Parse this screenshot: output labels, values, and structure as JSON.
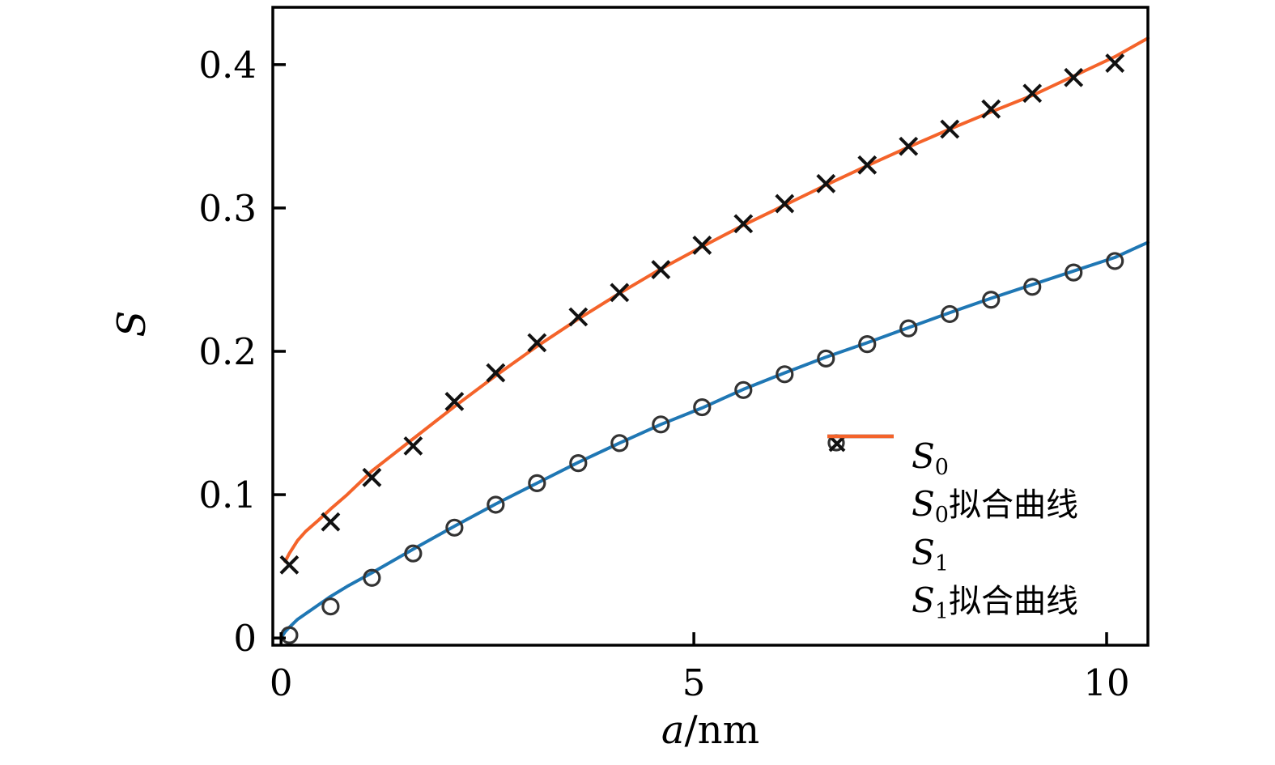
{
  "chart_data": {
    "type": "scatter",
    "title": "",
    "xlabel_var": "a",
    "xlabel_unit": "/nm",
    "ylabel": "S",
    "xlim": [
      -0.1,
      10.5
    ],
    "ylim": [
      -0.005,
      0.44
    ],
    "grid": false,
    "axis_color": "#000000",
    "x_ticks": [
      {
        "value": 0,
        "label": "0"
      },
      {
        "value": 5,
        "label": "5"
      },
      {
        "value": 10,
        "label": "10"
      }
    ],
    "y_ticks": [
      {
        "value": 0,
        "label": "0"
      },
      {
        "value": 0.1,
        "label": "0.1"
      },
      {
        "value": 0.2,
        "label": "0.2"
      },
      {
        "value": 0.3,
        "label": "0.3"
      },
      {
        "value": 0.4,
        "label": "0.4"
      }
    ],
    "series": [
      {
        "id": "s0",
        "name": "S0",
        "kind": "scatter",
        "marker": "circle",
        "color": "#333333",
        "x": [
          0.1,
          0.6,
          1.1,
          1.6,
          2.1,
          2.6,
          3.1,
          3.6,
          4.1,
          4.6,
          5.1,
          5.6,
          6.1,
          6.6,
          7.1,
          7.6,
          8.1,
          8.6,
          9.1,
          9.6,
          10.1
        ],
        "y": [
          0.002,
          0.022,
          0.042,
          0.059,
          0.077,
          0.093,
          0.108,
          0.122,
          0.136,
          0.149,
          0.161,
          0.173,
          0.184,
          0.195,
          0.205,
          0.216,
          0.226,
          0.236,
          0.245,
          0.255,
          0.263
        ]
      },
      {
        "id": "s0_fit",
        "name": "S0 fit curve",
        "kind": "line",
        "color": "#1f77b4",
        "x": [
          0,
          0.05,
          0.1,
          0.2,
          0.3,
          0.45,
          0.6,
          0.8,
          1.1,
          1.6,
          2.1,
          2.6,
          3.1,
          3.6,
          4.1,
          4.6,
          5.1,
          5.6,
          6.1,
          6.6,
          7.1,
          7.6,
          8.1,
          8.6,
          9.1,
          9.6,
          10.1,
          10.5
        ],
        "y": [
          0,
          0.0045,
          0.0075,
          0.013,
          0.017,
          0.023,
          0.029,
          0.036,
          0.0455,
          0.062,
          0.078,
          0.0935,
          0.108,
          0.1225,
          0.136,
          0.149,
          0.1605,
          0.1735,
          0.185,
          0.196,
          0.206,
          0.2165,
          0.227,
          0.237,
          0.2465,
          0.256,
          0.2655,
          0.276
        ]
      },
      {
        "id": "s1",
        "name": "S1",
        "kind": "scatter",
        "marker": "x",
        "color": "#111111",
        "x": [
          0.1,
          0.6,
          1.1,
          1.6,
          2.1,
          2.6,
          3.1,
          3.6,
          4.1,
          4.6,
          5.1,
          5.6,
          6.1,
          6.6,
          7.1,
          7.6,
          8.1,
          8.6,
          9.1,
          9.6,
          10.1
        ],
        "y": [
          0.051,
          0.081,
          0.112,
          0.134,
          0.165,
          0.185,
          0.206,
          0.224,
          0.241,
          0.257,
          0.274,
          0.289,
          0.303,
          0.317,
          0.33,
          0.343,
          0.355,
          0.369,
          0.38,
          0.391,
          0.401
        ]
      },
      {
        "id": "s1_fit",
        "name": "S1 fit curve",
        "kind": "line",
        "color": "#f4632a",
        "x": [
          0.05,
          0.1,
          0.2,
          0.3,
          0.45,
          0.6,
          0.8,
          1.1,
          1.6,
          2.1,
          2.6,
          3.1,
          3.6,
          4.1,
          4.6,
          5.1,
          5.6,
          6.1,
          6.6,
          7.1,
          7.6,
          8.1,
          8.6,
          9.1,
          9.6,
          10.1,
          10.5
        ],
        "y": [
          0.0535,
          0.059,
          0.068,
          0.0745,
          0.082,
          0.09,
          0.1,
          0.1165,
          0.139,
          0.1615,
          0.183,
          0.2035,
          0.2225,
          0.2405,
          0.2575,
          0.273,
          0.288,
          0.302,
          0.316,
          0.3295,
          0.3425,
          0.355,
          0.367,
          0.3785,
          0.392,
          0.4055,
          0.4185
        ]
      }
    ],
    "legend": {
      "frame": false,
      "position": "center-right-lower",
      "items": [
        {
          "symbol": "circle",
          "base": "S",
          "sub": "0",
          "suffix": ""
        },
        {
          "symbol": "line-blue",
          "base": "S",
          "sub": "0",
          "suffix": "拟合曲线"
        },
        {
          "symbol": "x",
          "base": "S",
          "sub": "1",
          "suffix": ""
        },
        {
          "symbol": "line-orange",
          "base": "S",
          "sub": "1",
          "suffix": "拟合曲线"
        }
      ]
    }
  }
}
